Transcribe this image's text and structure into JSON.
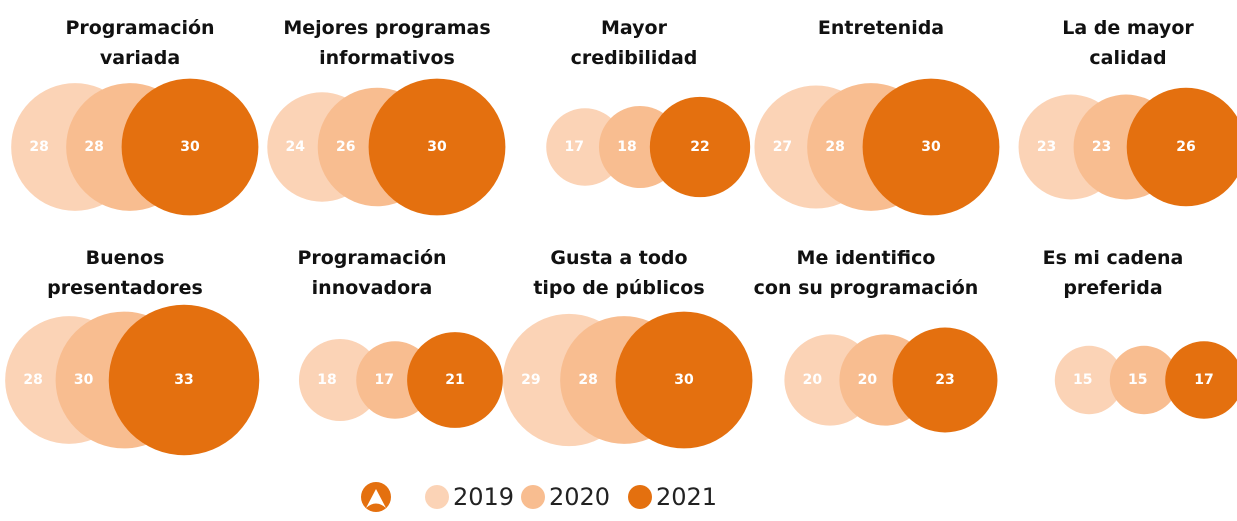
{
  "chart_data": {
    "type": "bubble",
    "categories": [
      "Programación\nvariada",
      "Mejores programas\ninformativos",
      "Mayor\ncredibilidad",
      "Entretenida",
      "La de mayor\ncalidad",
      "Buenos\npresentadores",
      "Programación\ninnovadora",
      "Gusta a todo\ntipo de públicos",
      "Me identifico\ncon su programación",
      "Es mi cadena\npreferida"
    ],
    "series": [
      {
        "name": "2019",
        "color": "#fbd3b6",
        "values": [
          28,
          24,
          17,
          27,
          23,
          28,
          18,
          29,
          20,
          15
        ]
      },
      {
        "name": "2020",
        "color": "#f8bd90",
        "values": [
          28,
          26,
          18,
          28,
          23,
          30,
          17,
          28,
          20,
          15
        ]
      },
      {
        "name": "2021",
        "color": "#e4700f",
        "values": [
          30,
          30,
          22,
          30,
          26,
          33,
          21,
          30,
          23,
          17
        ]
      }
    ]
  }
}
